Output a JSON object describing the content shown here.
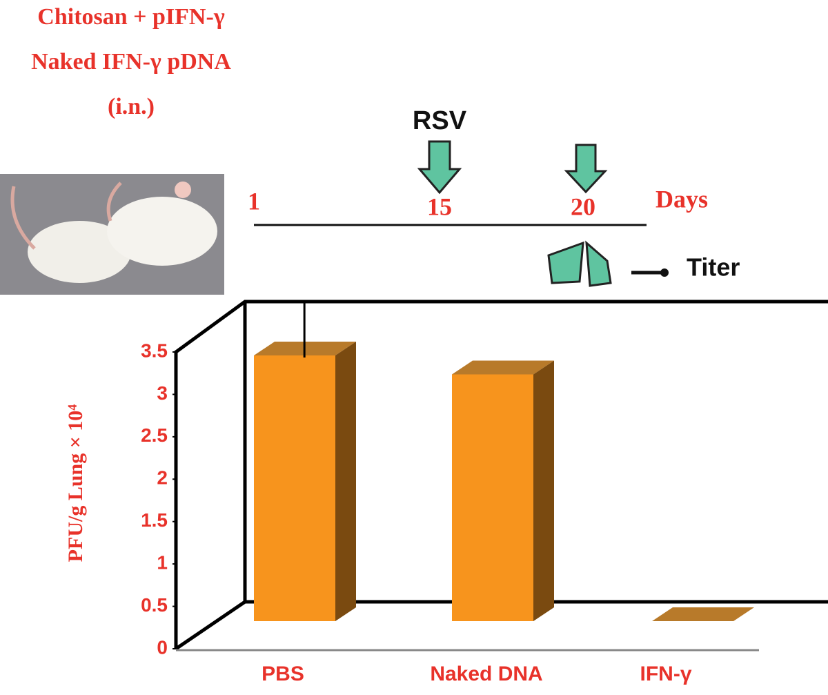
{
  "chart_data": {
    "type": "bar3d",
    "annotations": {
      "treatments": [
        "Chitosan + pIFN-γ",
        "Naked IFN-γ pDNA",
        "(i.n.)"
      ],
      "challenge": "RSV",
      "timeline_label": "Days",
      "days": [
        1,
        15,
        20
      ],
      "readout": "Titer"
    },
    "y_label": "PFU/g Lung × 10⁴",
    "categories": [
      "PBS",
      "Naked DNA",
      "IFN-γ"
    ],
    "values": [
      3.5,
      3.25,
      0
    ],
    "errors": [
      0.7,
      null,
      null
    ],
    "colors": {
      "front": "#f7941d",
      "side": "#7a4a10",
      "top": "#b87a2a"
    },
    "ylim": [
      0,
      3.5
    ],
    "yticks": [
      0,
      0.5,
      1,
      1.5,
      2,
      2.5,
      3,
      3.5
    ]
  }
}
